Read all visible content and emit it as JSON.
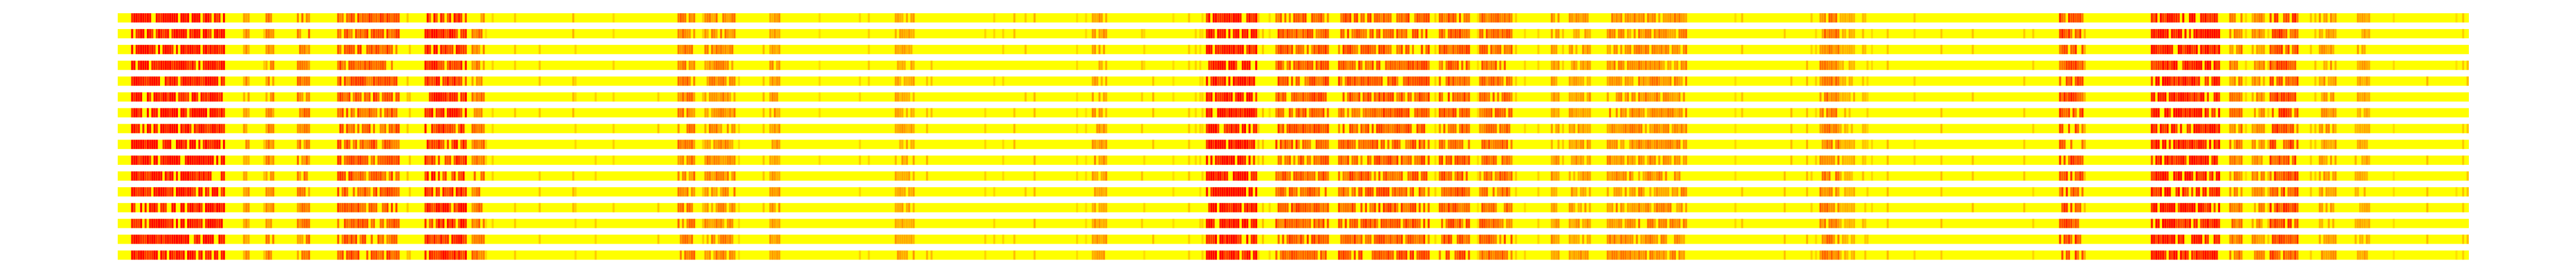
{
  "chart_data": {
    "type": "heatmap",
    "title": "",
    "xlabel": "",
    "ylabel": "",
    "axes_visible": false,
    "grid": false,
    "legend": "none",
    "colormap": {
      "low": "#ffff00",
      "mid": "#ffa500",
      "high": "#ff0000"
    },
    "value_range": [
      0,
      1
    ],
    "n_rows": 16,
    "n_columns": 1050,
    "background_color": "#ffff00",
    "high_intensity_bands": [
      {
        "start": 6,
        "end": 47,
        "value": 0.95
      },
      {
        "start": 56,
        "end": 58,
        "value": 0.5
      },
      {
        "start": 66,
        "end": 69,
        "value": 0.55
      },
      {
        "start": 80,
        "end": 85,
        "value": 0.6
      },
      {
        "start": 98,
        "end": 125,
        "value": 0.7
      },
      {
        "start": 137,
        "end": 155,
        "value": 0.85
      },
      {
        "start": 158,
        "end": 163,
        "value": 0.6
      },
      {
        "start": 250,
        "end": 257,
        "value": 0.6
      },
      {
        "start": 262,
        "end": 275,
        "value": 0.55
      },
      {
        "start": 291,
        "end": 295,
        "value": 0.5
      },
      {
        "start": 347,
        "end": 355,
        "value": 0.45
      },
      {
        "start": 435,
        "end": 441,
        "value": 0.5
      },
      {
        "start": 486,
        "end": 508,
        "value": 0.95
      },
      {
        "start": 517,
        "end": 540,
        "value": 0.7
      },
      {
        "start": 545,
        "end": 585,
        "value": 0.7
      },
      {
        "start": 590,
        "end": 603,
        "value": 0.7
      },
      {
        "start": 608,
        "end": 622,
        "value": 0.65
      },
      {
        "start": 640,
        "end": 643,
        "value": 0.5
      },
      {
        "start": 648,
        "end": 657,
        "value": 0.5
      },
      {
        "start": 665,
        "end": 700,
        "value": 0.55
      },
      {
        "start": 760,
        "end": 768,
        "value": 0.6
      },
      {
        "start": 768,
        "end": 775,
        "value": 0.4
      },
      {
        "start": 867,
        "end": 877,
        "value": 0.75
      },
      {
        "start": 908,
        "end": 938,
        "value": 0.9
      },
      {
        "start": 943,
        "end": 948,
        "value": 0.6
      },
      {
        "start": 953,
        "end": 958,
        "value": 0.55
      },
      {
        "start": 961,
        "end": 973,
        "value": 0.75
      },
      {
        "start": 983,
        "end": 990,
        "value": 0.5
      },
      {
        "start": 1000,
        "end": 1005,
        "value": 0.45
      }
    ]
  }
}
